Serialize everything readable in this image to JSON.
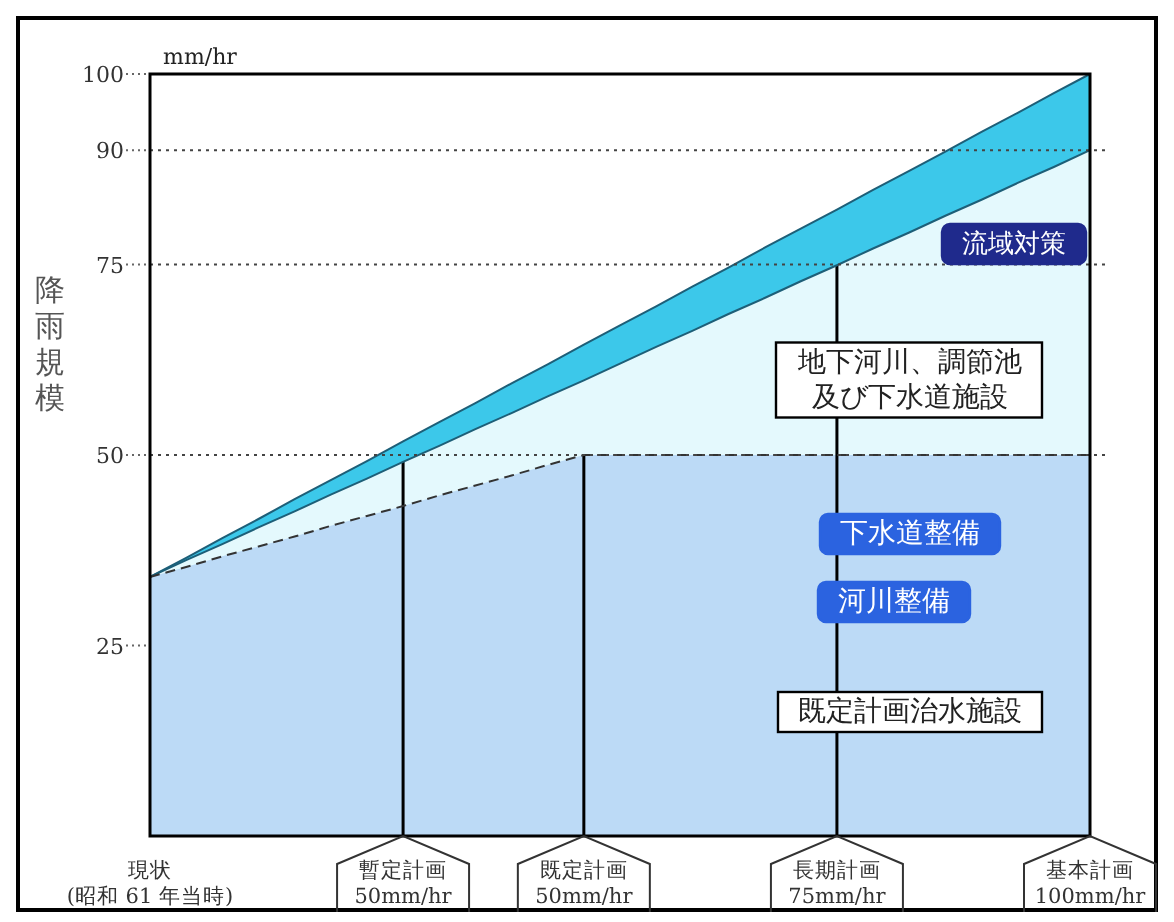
{
  "chart_data": {
    "type": "area",
    "ylabel": "降雨規模",
    "ylim": [
      0,
      100
    ],
    "categories": [
      "現状\n(昭和 61 年当時)",
      null,
      null,
      null,
      null,
      null,
      null,
      "暫定計画\n50mm/hr",
      null,
      null,
      null,
      null,
      "既定計画\n50mm/hr",
      null,
      null,
      null,
      null,
      null,
      null,
      "長期計画\n75mm/hr",
      null,
      null,
      null,
      null,
      null,
      null,
      "基本計画\n100mm/hr"
    ],
    "yticks": [
      25,
      50,
      75,
      90,
      100
    ],
    "series": [
      {
        "color": "#3cc8ea",
        "values": [
          34,
          36.5,
          39.1,
          41.6,
          44.2,
          46.7,
          49.2,
          51.8,
          54.3,
          56.8,
          59.4,
          61.9,
          64.5,
          67,
          69.5,
          72.1,
          74.6,
          77.2,
          79.7,
          82.2,
          84.8,
          87.3,
          89.8,
          92.4,
          94.9,
          97.5,
          100
        ]
      },
      {
        "color": "#e4f9fd",
        "values": [
          34,
          36.2,
          38.3,
          40.5,
          42.6,
          44.8,
          46.9,
          49.1,
          51.2,
          53.4,
          55.5,
          57.7,
          59.8,
          62,
          64.2,
          66.3,
          68.5,
          70.6,
          72.8,
          74.9,
          77.1,
          79.2,
          81.4,
          83.5,
          85.7,
          87.8,
          90
        ]
      },
      {
        "color": "#bcdaf6",
        "line_style": "dashed",
        "values": [
          34,
          35.3,
          36.7,
          38,
          39.3,
          40.7,
          42,
          43.3,
          44.7,
          46,
          47.3,
          48.7,
          50,
          50,
          50,
          50,
          50,
          50,
          50,
          50,
          50,
          50,
          50,
          50,
          50,
          50,
          50
        ]
      },
      {
        "type": "bar",
        "color": "#000000",
        "values": [
          null,
          null,
          null,
          null,
          null,
          null,
          null,
          49.1,
          null,
          null,
          null,
          null,
          50,
          null,
          null,
          null,
          null,
          null,
          null,
          74.9,
          null,
          null,
          null,
          null,
          null,
          null,
          null
        ]
      }
    ],
    "ref_lines": [
      {
        "axis": "y",
        "value": 50,
        "line_style": "dotted",
        "color": "#444444"
      },
      {
        "axis": "y",
        "value": 75,
        "line_style": "dotted",
        "color": "#444444"
      },
      {
        "axis": "y",
        "value": 90,
        "line_style": "dotted",
        "color": "#444444"
      }
    ],
    "annotations": [
      "mm/hr",
      "流域対策",
      "地下河川、調節池及び下水道施設",
      "下水道整備",
      "河川整備",
      "既定計画治水施設"
    ]
  }
}
